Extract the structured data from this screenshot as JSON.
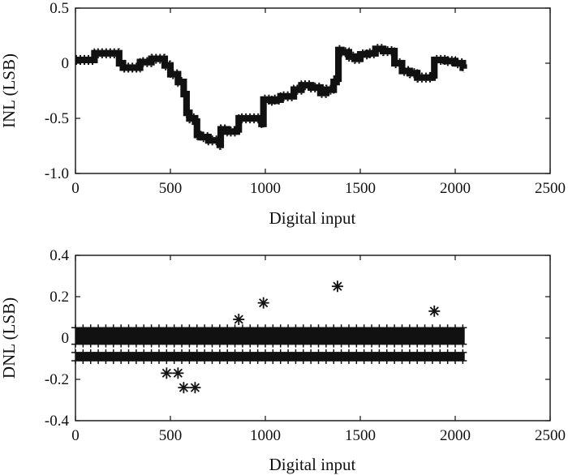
{
  "chart_data": [
    {
      "type": "line",
      "title": "",
      "xlabel": "Digital input",
      "ylabel": "INL (LSB)",
      "xlim": [
        0,
        2500
      ],
      "ylim": [
        -1.0,
        0.5
      ],
      "x_ticks": [
        0,
        500,
        1000,
        1500,
        2000,
        2500
      ],
      "y_ticks": [
        0.5,
        0,
        -0.5,
        -1.0
      ],
      "x_tick_labels": [
        "0",
        "500",
        "1000",
        "1500",
        "2000",
        "2500"
      ],
      "y_tick_labels": [
        "0.5",
        "0",
        "-0.5",
        "-1.0"
      ],
      "grid": false,
      "band_halfwidth_lsb": 0.03,
      "series": [
        {
          "x": [
            0,
            60,
            100,
            160,
            230,
            250,
            300,
            340,
            400,
            470,
            500,
            540,
            570,
            585,
            600,
            630,
            640,
            660,
            700,
            760,
            765,
            800,
            850,
            860,
            900,
            980,
            990,
            1030,
            1050,
            1080,
            1110,
            1150,
            1190,
            1240,
            1290,
            1320,
            1360,
            1375,
            1385,
            1400,
            1440,
            1470,
            1500,
            1540,
            1580,
            1620,
            1680,
            1720,
            1760,
            1800,
            1850,
            1880,
            1890,
            1900,
            1950,
            2000,
            2040,
            2045
          ],
          "y": [
            0.03,
            0.03,
            0.09,
            0.09,
            0.0,
            -0.04,
            -0.04,
            0.01,
            0.04,
            -0.02,
            -0.1,
            -0.17,
            -0.28,
            -0.45,
            -0.5,
            -0.53,
            -0.65,
            -0.67,
            -0.7,
            -0.74,
            -0.6,
            -0.62,
            -0.6,
            -0.5,
            -0.5,
            -0.55,
            -0.33,
            -0.34,
            -0.33,
            -0.3,
            -0.3,
            -0.24,
            -0.2,
            -0.22,
            -0.27,
            -0.24,
            -0.17,
            -0.14,
            0.12,
            0.1,
            0.06,
            0.04,
            0.08,
            0.09,
            0.13,
            0.11,
            0.0,
            -0.07,
            -0.09,
            -0.13,
            -0.13,
            -0.11,
            0.03,
            0.03,
            0.02,
            0.0,
            -0.04,
            -0.05
          ]
        }
      ]
    },
    {
      "type": "scatter",
      "title": "",
      "xlabel": "Digital input",
      "ylabel": "DNL (LSB)",
      "xlim": [
        0,
        2500
      ],
      "ylim": [
        -0.4,
        0.4
      ],
      "x_ticks": [
        0,
        500,
        1000,
        1500,
        2000,
        2500
      ],
      "y_ticks": [
        0.4,
        0.2,
        0,
        -0.2,
        -0.4
      ],
      "x_tick_labels": [
        "0",
        "500",
        "1000",
        "1500",
        "2000",
        "2500"
      ],
      "y_tick_labels": [
        "0.4",
        "0.2",
        "0",
        "-0.2",
        "-0.4"
      ],
      "grid": false,
      "dense_bands": [
        {
          "x_range": [
            0,
            2050
          ],
          "y_range": [
            -0.03,
            0.05
          ]
        },
        {
          "x_range": [
            0,
            2050
          ],
          "y_range": [
            -0.11,
            -0.07
          ]
        }
      ],
      "series": [
        {
          "marker": "asterisk",
          "x": [
            480,
            540,
            570,
            630,
            860,
            990,
            1380,
            1890
          ],
          "y": [
            -0.17,
            -0.17,
            -0.24,
            -0.24,
            0.09,
            0.17,
            0.25,
            0.13
          ]
        }
      ]
    }
  ]
}
